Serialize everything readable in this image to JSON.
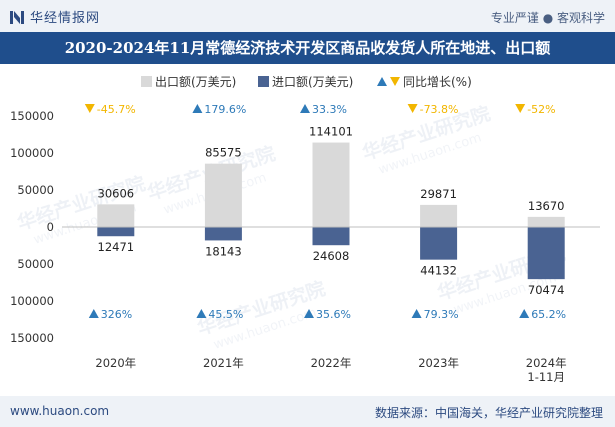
{
  "header": {
    "brand": "华经情报网",
    "tagline": "专业严谨 ● 客观科学"
  },
  "title": "2020-2024年11月常德经济技术开发区商品收发货人所在地进、出口额",
  "watermark": "华经产业研究院",
  "watermark_url": "www.huaon.com",
  "footer": {
    "url": "www.huaon.com",
    "source": "数据来源：中国海关，华经产业研究院整理"
  },
  "colors": {
    "export": "#d9d9d9",
    "import": "#4a6392",
    "growth_up": "#2e7ab8",
    "growth_down": "#f2b600",
    "titlebar": "#1f4e8c"
  },
  "chart_data": {
    "type": "bar",
    "categories": [
      "2020年",
      "2021年",
      "2022年",
      "2023年",
      "2024年\n1-11月"
    ],
    "series": [
      {
        "name": "出口额(万美元)",
        "values": [
          30606,
          85575,
          114101,
          29871,
          13670
        ]
      },
      {
        "name": "进口额(万美元)",
        "values": [
          -12471,
          -18143,
          -24608,
          -44132,
          -70474
        ]
      }
    ],
    "export_growth": [
      {
        "text": "-45.7%",
        "dir": "down"
      },
      {
        "text": "179.6%",
        "dir": "up"
      },
      {
        "text": "33.3%",
        "dir": "up"
      },
      {
        "text": "-73.8%",
        "dir": "down"
      },
      {
        "text": "-52%",
        "dir": "down"
      }
    ],
    "import_growth": [
      {
        "text": "326%",
        "dir": "up"
      },
      {
        "text": "45.5%",
        "dir": "up"
      },
      {
        "text": "35.6%",
        "dir": "up"
      },
      {
        "text": "79.3%",
        "dir": "up"
      },
      {
        "text": "65.2%",
        "dir": "up"
      }
    ],
    "legend": [
      "出口额(万美元)",
      "进口额(万美元)",
      "同比增长(%)"
    ],
    "y_ticks": [
      "150000",
      "100000",
      "50000",
      "0",
      "50000",
      "100000",
      "150000"
    ],
    "ylim": [
      -150000,
      150000
    ]
  }
}
